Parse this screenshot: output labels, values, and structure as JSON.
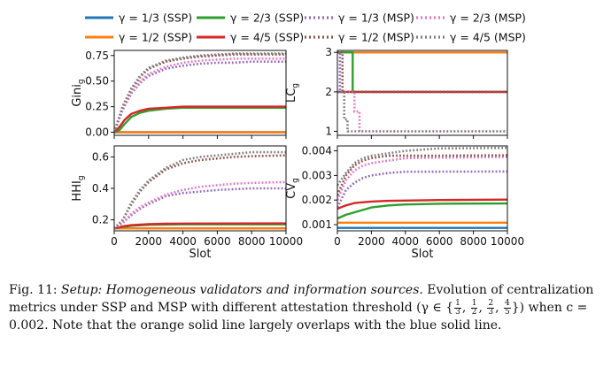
{
  "figure": {
    "legend": [
      {
        "label": "γ = 1/3 (SSP)",
        "color": "#1f77b4",
        "style": "solid"
      },
      {
        "label": "γ = 2/3 (SSP)",
        "color": "#2ca02c",
        "style": "solid"
      },
      {
        "label": "γ = 1/3 (MSP)",
        "color": "#9467bd",
        "style": "dotted"
      },
      {
        "label": "γ = 2/3 (MSP)",
        "color": "#e377c2",
        "style": "dotted"
      },
      {
        "label": "γ = 1/2 (SSP)",
        "color": "#ff7f0e",
        "style": "solid"
      },
      {
        "label": "γ = 4/5 (SSP)",
        "color": "#d62728",
        "style": "solid"
      },
      {
        "label": "γ = 1/2 (MSP)",
        "color": "#8c564b",
        "style": "dotted"
      },
      {
        "label": "γ = 4/5 (MSP)",
        "color": "#7f7f7f",
        "style": "dotted"
      }
    ],
    "caption": {
      "label": "Fig. 11:",
      "setup": "Setup: Homogeneous validators and information sources.",
      "text1": " Evolution of centralization metrics under SSP and MSP with different attestation threshold (γ ∈ {",
      "fractions": [
        [
          "1",
          "3"
        ],
        [
          "1",
          "2"
        ],
        [
          "2",
          "3"
        ],
        [
          "4",
          "5"
        ]
      ],
      "text2": "}) when c = 0.002. Note that the orange solid line largely overlaps with the blue solid line."
    }
  },
  "chart_data": [
    {
      "type": "line",
      "id": "gini",
      "ylabel": "Gini",
      "ylabel_sub": "g",
      "xlabel": "",
      "xlim": [
        0,
        10000
      ],
      "ylim": [
        -0.03,
        0.8
      ],
      "xticks": [
        "0",
        "2000",
        "4000",
        "6000",
        "8000",
        "10000"
      ],
      "show_xtick_labels": false,
      "yticks": [
        "0.00",
        "0.25",
        "0.50",
        "0.75"
      ],
      "series": [
        {
          "legend": 0,
          "x": [
            0,
            10000
          ],
          "y": [
            0.0,
            0.0
          ]
        },
        {
          "legend": 4,
          "x": [
            0,
            10000
          ],
          "y": [
            0.0,
            0.0
          ]
        },
        {
          "legend": 1,
          "x": [
            0,
            300,
            600,
            1000,
            1500,
            2000,
            3000,
            4000,
            5000,
            10000
          ],
          "y": [
            0.0,
            0.02,
            0.08,
            0.15,
            0.19,
            0.21,
            0.23,
            0.24,
            0.24,
            0.24
          ]
        },
        {
          "legend": 5,
          "x": [
            0,
            300,
            600,
            1000,
            1500,
            2000,
            3000,
            4000,
            5000,
            10000
          ],
          "y": [
            0.0,
            0.05,
            0.12,
            0.18,
            0.21,
            0.23,
            0.24,
            0.25,
            0.25,
            0.25
          ]
        },
        {
          "legend": 2,
          "x": [
            0,
            500,
            1000,
            1500,
            2000,
            3000,
            4000,
            5000,
            6000,
            7000,
            8000,
            10000
          ],
          "y": [
            0.0,
            0.22,
            0.38,
            0.48,
            0.55,
            0.62,
            0.65,
            0.67,
            0.68,
            0.68,
            0.69,
            0.69
          ]
        },
        {
          "legend": 3,
          "x": [
            0,
            500,
            1000,
            1500,
            2000,
            3000,
            4000,
            5000,
            6000,
            7000,
            8000,
            10000
          ],
          "y": [
            0.0,
            0.23,
            0.39,
            0.5,
            0.57,
            0.64,
            0.68,
            0.7,
            0.71,
            0.72,
            0.72,
            0.72
          ]
        },
        {
          "legend": 6,
          "x": [
            0,
            500,
            1000,
            1500,
            2000,
            3000,
            4000,
            5000,
            6000,
            7000,
            8000,
            10000
          ],
          "y": [
            0.0,
            0.25,
            0.42,
            0.54,
            0.62,
            0.69,
            0.72,
            0.74,
            0.75,
            0.76,
            0.76,
            0.76
          ]
        },
        {
          "legend": 7,
          "x": [
            0,
            500,
            1000,
            1500,
            2000,
            3000,
            4000,
            5000,
            6000,
            7000,
            8000,
            10000
          ],
          "y": [
            0.0,
            0.26,
            0.43,
            0.55,
            0.63,
            0.7,
            0.73,
            0.75,
            0.76,
            0.77,
            0.77,
            0.77
          ]
        }
      ]
    },
    {
      "type": "line",
      "id": "lc",
      "ylabel": "LC",
      "ylabel_sub": "g",
      "xlabel": "",
      "xlim": [
        0,
        10000
      ],
      "ylim": [
        0.9,
        3.05
      ],
      "xticks": [
        "0",
        "2000",
        "4000",
        "6000",
        "8000",
        "10000"
      ],
      "show_xtick_labels": false,
      "yticks": [
        "1",
        "2",
        "3"
      ],
      "series": [
        {
          "legend": 0,
          "x": [
            0,
            10000
          ],
          "y": [
            3,
            3
          ]
        },
        {
          "legend": 4,
          "x": [
            0,
            10000
          ],
          "y": [
            3,
            3
          ]
        },
        {
          "legend": 1,
          "x": [
            0,
            900,
            900,
            10000
          ],
          "y": [
            3,
            3,
            2,
            2
          ]
        },
        {
          "legend": 5,
          "x": [
            0,
            10000
          ],
          "y": [
            2,
            2
          ]
        },
        {
          "legend": 2,
          "x": [
            0,
            150,
            150,
            10000
          ],
          "y": [
            3,
            3,
            2,
            2
          ]
        },
        {
          "legend": 3,
          "x": [
            0,
            1000,
            1000,
            1300,
            1300,
            10000
          ],
          "y": [
            2,
            2,
            1.5,
            1.5,
            1,
            1
          ]
        },
        {
          "legend": 6,
          "x": [
            0,
            300,
            300,
            10000
          ],
          "y": [
            3,
            3,
            2,
            2
          ]
        },
        {
          "legend": 7,
          "x": [
            0,
            400,
            400,
            600,
            600,
            10000
          ],
          "y": [
            2,
            2,
            1.3,
            1.3,
            1,
            1
          ]
        }
      ]
    },
    {
      "type": "line",
      "id": "hhi",
      "ylabel": "HHI",
      "ylabel_sub": "g",
      "xlabel": "Slot",
      "xlim": [
        0,
        10000
      ],
      "ylim": [
        0.13,
        0.67
      ],
      "xticks": [
        "0",
        "2000",
        "4000",
        "6000",
        "8000",
        "10000"
      ],
      "show_xtick_labels": true,
      "yticks": [
        "0.2",
        "0.4",
        "0.6"
      ],
      "series": [
        {
          "legend": 0,
          "x": [
            0,
            10000
          ],
          "y": [
            0.145,
            0.145
          ]
        },
        {
          "legend": 4,
          "x": [
            0,
            10000
          ],
          "y": [
            0.145,
            0.145
          ]
        },
        {
          "legend": 1,
          "x": [
            0,
            500,
            1000,
            2000,
            3000,
            4000,
            10000
          ],
          "y": [
            0.145,
            0.155,
            0.162,
            0.168,
            0.17,
            0.171,
            0.171
          ]
        },
        {
          "legend": 5,
          "x": [
            0,
            500,
            1000,
            2000,
            3000,
            4000,
            10000
          ],
          "y": [
            0.145,
            0.158,
            0.166,
            0.172,
            0.175,
            0.176,
            0.177
          ]
        },
        {
          "legend": 2,
          "x": [
            0,
            500,
            1000,
            1500,
            2000,
            3000,
            4000,
            5000,
            6000,
            7000,
            8000,
            10000
          ],
          "y": [
            0.145,
            0.18,
            0.23,
            0.27,
            0.3,
            0.35,
            0.37,
            0.38,
            0.39,
            0.395,
            0.4,
            0.4
          ]
        },
        {
          "legend": 3,
          "x": [
            0,
            500,
            1000,
            1500,
            2000,
            3000,
            4000,
            5000,
            6000,
            7000,
            8000,
            10000
          ],
          "y": [
            0.145,
            0.18,
            0.24,
            0.28,
            0.31,
            0.36,
            0.39,
            0.41,
            0.42,
            0.43,
            0.435,
            0.44
          ]
        },
        {
          "legend": 6,
          "x": [
            0,
            500,
            1000,
            1500,
            2000,
            3000,
            4000,
            5000,
            6000,
            7000,
            8000,
            10000
          ],
          "y": [
            0.145,
            0.2,
            0.3,
            0.38,
            0.44,
            0.52,
            0.56,
            0.58,
            0.59,
            0.6,
            0.605,
            0.61
          ]
        },
        {
          "legend": 7,
          "x": [
            0,
            500,
            1000,
            1500,
            2000,
            3000,
            4000,
            5000,
            6000,
            7000,
            8000,
            10000
          ],
          "y": [
            0.145,
            0.2,
            0.31,
            0.39,
            0.45,
            0.53,
            0.58,
            0.6,
            0.61,
            0.62,
            0.63,
            0.63
          ]
        }
      ]
    },
    {
      "type": "line",
      "id": "cv",
      "ylabel": "CV",
      "ylabel_sub": "g",
      "xlabel": "Slot",
      "xlim": [
        0,
        10000
      ],
      "ylim": [
        0.00075,
        0.0042
      ],
      "xticks": [
        "0",
        "2000",
        "4000",
        "6000",
        "8000",
        "10000"
      ],
      "show_xtick_labels": true,
      "yticks": [
        "0.001",
        "0.002",
        "0.003",
        "0.004"
      ],
      "series": [
        {
          "legend": 0,
          "x": [
            0,
            10000
          ],
          "y": [
            0.00087,
            0.00087
          ]
        },
        {
          "legend": 4,
          "x": [
            0,
            10000
          ],
          "y": [
            0.00108,
            0.00108
          ]
        },
        {
          "legend": 1,
          "x": [
            0,
            500,
            1000,
            2000,
            3000,
            4000,
            6000,
            10000
          ],
          "y": [
            0.00125,
            0.0014,
            0.0015,
            0.0017,
            0.00178,
            0.00182,
            0.00185,
            0.00186
          ]
        },
        {
          "legend": 5,
          "x": [
            0,
            500,
            1000,
            2000,
            3000,
            4000,
            6000,
            10000
          ],
          "y": [
            0.00165,
            0.00178,
            0.00188,
            0.00194,
            0.00197,
            0.00198,
            0.002,
            0.00202
          ]
        },
        {
          "legend": 2,
          "x": [
            0,
            500,
            1000,
            1500,
            2000,
            3000,
            4000,
            5000,
            10000
          ],
          "y": [
            0.0017,
            0.0024,
            0.0027,
            0.0029,
            0.003,
            0.0031,
            0.00315,
            0.00315,
            0.00316
          ]
        },
        {
          "legend": 3,
          "x": [
            0,
            500,
            1000,
            1500,
            2000,
            3000,
            4000,
            5000,
            10000
          ],
          "y": [
            0.002,
            0.0028,
            0.0032,
            0.0034,
            0.0035,
            0.0036,
            0.0037,
            0.00372,
            0.00375
          ]
        },
        {
          "legend": 6,
          "x": [
            0,
            500,
            1000,
            1500,
            2000,
            3000,
            4000,
            5000,
            10000
          ],
          "y": [
            0.0022,
            0.003,
            0.0034,
            0.0036,
            0.0037,
            0.0038,
            0.0038,
            0.0038,
            0.00382
          ]
        },
        {
          "legend": 7,
          "x": [
            0,
            500,
            1000,
            1500,
            2000,
            3000,
            4000,
            5000,
            6000,
            10000
          ],
          "y": [
            0.0026,
            0.0031,
            0.0035,
            0.0037,
            0.0038,
            0.0039,
            0.004,
            0.00405,
            0.0041,
            0.00412
          ]
        }
      ]
    }
  ]
}
